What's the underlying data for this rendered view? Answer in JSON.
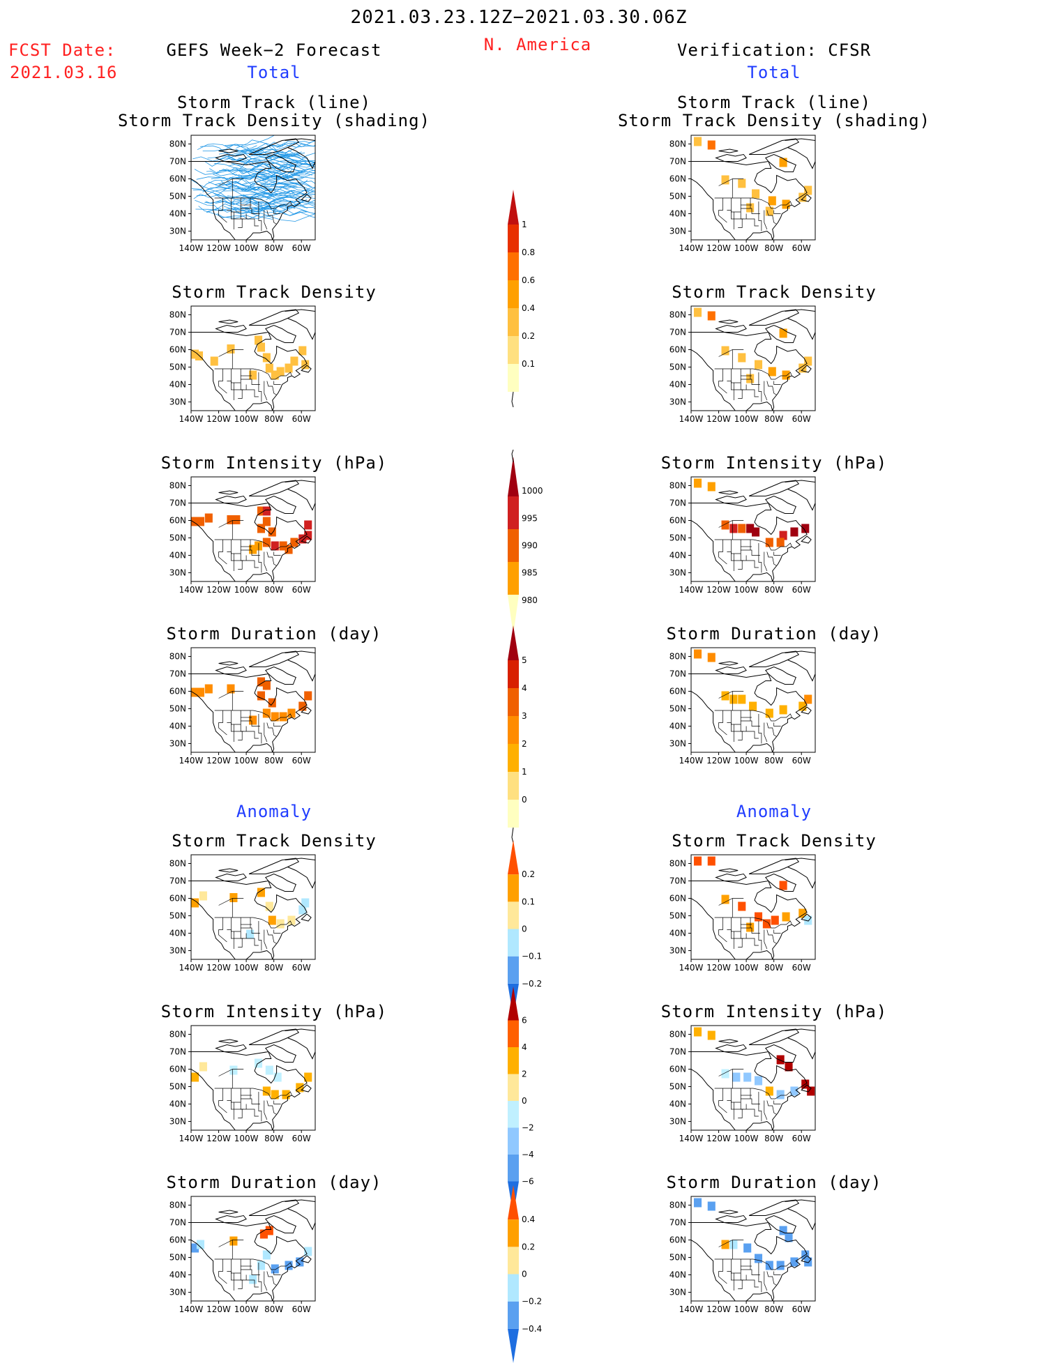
{
  "header": {
    "period": "2021.03.23.12Z−2021.03.30.06Z",
    "fcst_label": "FCST Date:",
    "fcst_date": "2021.03.16",
    "left_title": "GEFS Week−2 Forecast",
    "center_title": "N. America",
    "right_title": "Verification: CFSR",
    "left_section_total": "Total",
    "right_section_total": "Total",
    "left_section_anomaly": "Anomaly",
    "right_section_anomaly": "Anomaly"
  },
  "titles": {
    "track_line": "Storm Track (line)",
    "track_shading": "Storm Track Density (shading)",
    "density": "Storm Track Density",
    "intensity": "Storm Intensity (hPa)",
    "duration": "Storm Duration (day)"
  },
  "axes": {
    "lon_ticks": [
      "140W",
      "120W",
      "100W",
      "80W",
      "60W"
    ],
    "lat_ticks": [
      "80N",
      "70N",
      "60N",
      "50N",
      "40N",
      "30N"
    ]
  },
  "colorbars": {
    "density_total": {
      "labels": [
        "1",
        "0.8",
        "0.6",
        "0.4",
        "0.2",
        "0.1"
      ],
      "colors": [
        "#ffffc0",
        "#ffe080",
        "#ffc040",
        "#ffa000",
        "#ff7000",
        "#e83000",
        "#c01010"
      ]
    },
    "intensity_total": {
      "labels": [
        "1000",
        "995",
        "990",
        "985",
        "980"
      ],
      "colors": [
        "#ffffc0",
        "#ffa000",
        "#f06000",
        "#d02020",
        "#a00010"
      ]
    },
    "duration_total": {
      "labels": [
        "5",
        "4",
        "3",
        "2",
        "1",
        "0"
      ],
      "colors": [
        "#ffffc0",
        "#ffe080",
        "#ffb000",
        "#ff8c00",
        "#f06000",
        "#d82000",
        "#a00010"
      ]
    },
    "density_anomaly": {
      "labels": [
        "0.2",
        "0.1",
        "0",
        "−0.1",
        "−0.2"
      ],
      "colors": [
        "#1e6ee0",
        "#5aa0f0",
        "#b0e8ff",
        "#ffe89a",
        "#ffa000",
        "#ff5000"
      ]
    },
    "intensity_anomaly": {
      "labels": [
        "6",
        "4",
        "2",
        "0",
        "−2",
        "−4",
        "−6"
      ],
      "colors": [
        "#1e6ee0",
        "#5aa0f0",
        "#90c8ff",
        "#c0f0ff",
        "#ffe89a",
        "#ffb000",
        "#ff6000",
        "#b00000"
      ]
    },
    "duration_anomaly": {
      "labels": [
        "0.4",
        "0.2",
        "0",
        "−0.2",
        "−0.4"
      ],
      "colors": [
        "#1e6ee0",
        "#5aa0f0",
        "#b0e8ff",
        "#ffe89a",
        "#ffa000",
        "#ff5000"
      ]
    }
  },
  "chart_data": [
    {
      "type": "heatmap",
      "panel": "gefs_total_track",
      "title": "Storm Track (line) / Storm Track Density (shading)",
      "xlim": [
        -140,
        -50
      ],
      "ylim": [
        25,
        85
      ],
      "track_color": "#1e96e6",
      "tracks_count": 120,
      "cells": []
    },
    {
      "type": "heatmap",
      "panel": "gefs_total_density",
      "title": "Storm Track Density",
      "xlim": [
        -140,
        -50
      ],
      "ylim": [
        25,
        85
      ],
      "cells": [
        [
          -138,
          58,
          0.2
        ],
        [
          -135,
          57,
          0.2
        ],
        [
          -92,
          66,
          0.2
        ],
        [
          -90,
          62,
          0.2
        ],
        [
          -86,
          56,
          0.2
        ],
        [
          -84,
          50,
          0.3
        ],
        [
          -80,
          46,
          0.3
        ],
        [
          -76,
          48,
          0.2
        ],
        [
          -70,
          50,
          0.2
        ],
        [
          -66,
          54,
          0.2
        ],
        [
          -60,
          60,
          0.2
        ],
        [
          -58,
          52,
          0.2
        ],
        [
          -96,
          46,
          0.3
        ],
        [
          -112,
          61,
          0.2
        ],
        [
          -124,
          54,
          0.2
        ]
      ]
    },
    {
      "type": "heatmap",
      "panel": "gefs_total_intensity",
      "title": "Storm Intensity (hPa)",
      "xlim": [
        -140,
        -50
      ],
      "ylim": [
        25,
        85
      ],
      "cells": [
        [
          -138,
          60,
          993
        ],
        [
          -134,
          60,
          993
        ],
        [
          -128,
          62,
          993
        ],
        [
          -112,
          61,
          993
        ],
        [
          -108,
          61,
          993
        ],
        [
          -90,
          66,
          993
        ],
        [
          -86,
          66,
          990
        ],
        [
          -86,
          60,
          993
        ],
        [
          -90,
          56,
          993
        ],
        [
          -82,
          54,
          993
        ],
        [
          -86,
          48,
          993
        ],
        [
          -80,
          46,
          990
        ],
        [
          -74,
          46,
          993
        ],
        [
          -70,
          44,
          993
        ],
        [
          -66,
          48,
          993
        ],
        [
          -60,
          50,
          990
        ],
        [
          -56,
          52,
          990
        ],
        [
          -56,
          58,
          990
        ],
        [
          -96,
          44,
          996
        ],
        [
          -92,
          46,
          996
        ]
      ]
    },
    {
      "type": "heatmap",
      "panel": "gefs_total_duration",
      "title": "Storm Duration (day)",
      "xlim": [
        -140,
        -50
      ],
      "ylim": [
        25,
        85
      ],
      "cells": [
        [
          -138,
          60,
          2.5
        ],
        [
          -134,
          60,
          2.5
        ],
        [
          -128,
          62,
          2.5
        ],
        [
          -112,
          62,
          2.5
        ],
        [
          -90,
          66,
          3
        ],
        [
          -86,
          64,
          3.5
        ],
        [
          -90,
          58,
          3
        ],
        [
          -82,
          54,
          3
        ],
        [
          -86,
          48,
          2.5
        ],
        [
          -80,
          46,
          2.5
        ],
        [
          -74,
          46,
          2.5
        ],
        [
          -68,
          48,
          2.5
        ],
        [
          -60,
          52,
          3
        ],
        [
          -56,
          58,
          3
        ],
        [
          -96,
          44,
          2
        ]
      ]
    },
    {
      "type": "heatmap",
      "panel": "gefs_anom_density",
      "title": "Storm Track Density",
      "xlim": [
        -140,
        -50
      ],
      "ylim": [
        25,
        85
      ],
      "cells": [
        [
          -138,
          58,
          0.1
        ],
        [
          -132,
          62,
          0.05
        ],
        [
          -110,
          61,
          0.1
        ],
        [
          -90,
          64,
          0.1
        ],
        [
          -84,
          56,
          0.05
        ],
        [
          -82,
          48,
          0.1
        ],
        [
          -76,
          46,
          0.05
        ],
        [
          -68,
          48,
          0.05
        ],
        [
          -60,
          54,
          -0.05
        ],
        [
          -58,
          58,
          -0.05
        ],
        [
          -98,
          40,
          -0.05
        ]
      ]
    },
    {
      "type": "heatmap",
      "panel": "gefs_anom_intensity",
      "title": "Storm Intensity (hPa)",
      "xlim": [
        -140,
        -50
      ],
      "ylim": [
        25,
        85
      ],
      "cells": [
        [
          -138,
          56,
          2
        ],
        [
          -132,
          62,
          1
        ],
        [
          -110,
          60,
          -1
        ],
        [
          -92,
          64,
          -1
        ],
        [
          -84,
          60,
          -1
        ],
        [
          -86,
          48,
          2
        ],
        [
          -80,
          46,
          2
        ],
        [
          -72,
          46,
          3
        ],
        [
          -62,
          50,
          3
        ],
        [
          -56,
          56,
          3
        ],
        [
          -78,
          56,
          -1
        ]
      ]
    },
    {
      "type": "heatmap",
      "panel": "gefs_anom_duration",
      "title": "Storm Duration (day)",
      "xlim": [
        -140,
        -50
      ],
      "ylim": [
        25,
        85
      ],
      "cells": [
        [
          -138,
          56,
          -0.3
        ],
        [
          -134,
          58,
          -0.1
        ],
        [
          -110,
          60,
          0.2
        ],
        [
          -88,
          64,
          0.4
        ],
        [
          -84,
          66,
          0.4
        ],
        [
          -86,
          52,
          -0.1
        ],
        [
          -90,
          46,
          -0.2
        ],
        [
          -80,
          44,
          -0.3
        ],
        [
          -70,
          46,
          -0.3
        ],
        [
          -62,
          48,
          -0.4
        ],
        [
          -56,
          54,
          -0.2
        ],
        [
          -96,
          38,
          -0.1
        ]
      ]
    },
    {
      "type": "heatmap",
      "panel": "cfsr_total_track",
      "title": "Storm Track (line) / Storm Track Density (shading)",
      "xlim": [
        -140,
        -50
      ],
      "ylim": [
        25,
        85
      ],
      "cells": [
        [
          -136,
          82,
          0.3
        ],
        [
          -126,
          80,
          0.6
        ],
        [
          -74,
          70,
          0.4
        ],
        [
          -116,
          60,
          0.3
        ],
        [
          -104,
          58,
          0.3
        ],
        [
          -94,
          52,
          0.3
        ],
        [
          -82,
          48,
          0.4
        ],
        [
          -72,
          46,
          0.4
        ],
        [
          -60,
          50,
          0.3
        ],
        [
          -56,
          54,
          0.3
        ],
        [
          -98,
          44,
          0.2
        ],
        [
          -84,
          42,
          0.3
        ]
      ]
    },
    {
      "type": "heatmap",
      "panel": "cfsr_total_density",
      "title": "Storm Track Density",
      "xlim": [
        -140,
        -50
      ],
      "ylim": [
        25,
        85
      ],
      "cells": [
        [
          -136,
          82,
          0.3
        ],
        [
          -126,
          80,
          0.6
        ],
        [
          -74,
          70,
          0.4
        ],
        [
          -116,
          60,
          0.3
        ],
        [
          -104,
          56,
          0.3
        ],
        [
          -92,
          52,
          0.3
        ],
        [
          -82,
          48,
          0.4
        ],
        [
          -72,
          46,
          0.4
        ],
        [
          -60,
          50,
          0.3
        ],
        [
          -56,
          54,
          0.3
        ],
        [
          -98,
          44,
          0.2
        ]
      ]
    },
    {
      "type": "heatmap",
      "panel": "cfsr_total_intensity",
      "title": "Storm Intensity (hPa)",
      "xlim": [
        -140,
        -50
      ],
      "ylim": [
        25,
        85
      ],
      "cells": [
        [
          -136,
          82,
          998
        ],
        [
          -126,
          80,
          998
        ],
        [
          -116,
          58,
          993
        ],
        [
          -110,
          56,
          990
        ],
        [
          -104,
          56,
          993
        ],
        [
          -98,
          56,
          985
        ],
        [
          -94,
          54,
          982
        ],
        [
          -74,
          52,
          990
        ],
        [
          -66,
          54,
          985
        ],
        [
          -58,
          56,
          982
        ],
        [
          -84,
          48,
          993
        ],
        [
          -76,
          48,
          993
        ]
      ]
    },
    {
      "type": "heatmap",
      "panel": "cfsr_total_duration",
      "title": "Storm Duration (day)",
      "xlim": [
        -140,
        -50
      ],
      "ylim": [
        25,
        85
      ],
      "cells": [
        [
          -136,
          82,
          2
        ],
        [
          -126,
          80,
          2
        ],
        [
          -116,
          58,
          1.5
        ],
        [
          -110,
          56,
          1.5
        ],
        [
          -104,
          56,
          1.5
        ],
        [
          -96,
          52,
          1.5
        ],
        [
          -84,
          48,
          1.5
        ],
        [
          -74,
          50,
          1.5
        ],
        [
          -60,
          52,
          1.5
        ],
        [
          -56,
          56,
          2
        ]
      ]
    },
    {
      "type": "heatmap",
      "panel": "cfsr_anom_density",
      "title": "Storm Track Density",
      "xlim": [
        -140,
        -50
      ],
      "ylim": [
        25,
        85
      ],
      "cells": [
        [
          -136,
          82,
          0.2
        ],
        [
          -126,
          82,
          0.2
        ],
        [
          -74,
          68,
          0.2
        ],
        [
          -116,
          60,
          0.15
        ],
        [
          -104,
          56,
          0.2
        ],
        [
          -92,
          50,
          0.2
        ],
        [
          -86,
          46,
          0.2
        ],
        [
          -80,
          48,
          0.2
        ],
        [
          -72,
          50,
          0.15
        ],
        [
          -60,
          52,
          0.1
        ],
        [
          -56,
          48,
          -0.05
        ],
        [
          -98,
          44,
          0.15
        ]
      ]
    },
    {
      "type": "heatmap",
      "panel": "cfsr_anom_intensity",
      "title": "Storm Intensity (hPa)",
      "xlim": [
        -140,
        -50
      ],
      "ylim": [
        25,
        85
      ],
      "cells": [
        [
          -136,
          82,
          3
        ],
        [
          -126,
          80,
          3
        ],
        [
          -76,
          66,
          6
        ],
        [
          -70,
          62,
          6
        ],
        [
          -116,
          58,
          -2
        ],
        [
          -108,
          56,
          -4
        ],
        [
          -100,
          56,
          -4
        ],
        [
          -92,
          54,
          -4
        ],
        [
          -84,
          48,
          3
        ],
        [
          -76,
          46,
          -3
        ],
        [
          -66,
          48,
          -3
        ],
        [
          -58,
          52,
          6
        ],
        [
          -54,
          48,
          6
        ]
      ]
    },
    {
      "type": "heatmap",
      "panel": "cfsr_anom_duration",
      "title": "Storm Duration (day)",
      "xlim": [
        -140,
        -50
      ],
      "ylim": [
        25,
        85
      ],
      "cells": [
        [
          -136,
          82,
          -0.4
        ],
        [
          -126,
          80,
          -0.4
        ],
        [
          -74,
          66,
          -0.3
        ],
        [
          -70,
          62,
          -0.3
        ],
        [
          -116,
          58,
          0.3
        ],
        [
          -110,
          58,
          -0.2
        ],
        [
          -100,
          56,
          -0.3
        ],
        [
          -92,
          50,
          -0.4
        ],
        [
          -84,
          46,
          -0.4
        ],
        [
          -76,
          46,
          -0.4
        ],
        [
          -66,
          48,
          -0.3
        ],
        [
          -58,
          52,
          -0.3
        ],
        [
          -56,
          48,
          -0.4
        ]
      ]
    }
  ]
}
